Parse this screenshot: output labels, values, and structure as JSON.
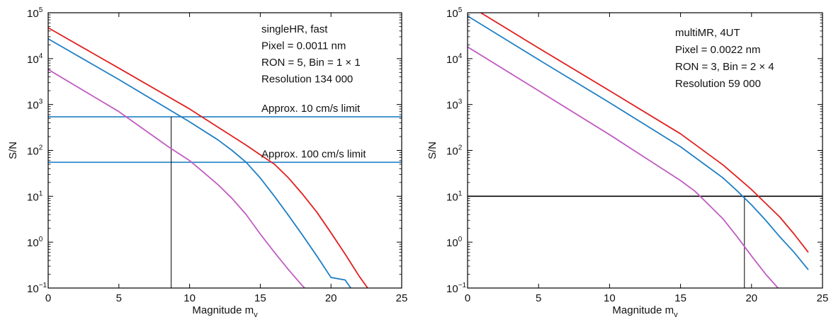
{
  "chart_data": [
    {
      "type": "line",
      "y_scale": "log",
      "xlabel": "Magnitude m",
      "xlabel_sub": "v",
      "ylabel": "S/N",
      "xlim": [
        0,
        25
      ],
      "ylim": [
        0.1,
        100000
      ],
      "xticks": [
        0,
        5,
        10,
        15,
        20,
        25
      ],
      "yticks": [
        {
          "value": 0.1,
          "base": "10",
          "exp": "−1"
        },
        {
          "value": 1,
          "base": "10",
          "exp": "0"
        },
        {
          "value": 10,
          "base": "10",
          "exp": "1"
        },
        {
          "value": 100,
          "base": "10",
          "exp": "2"
        },
        {
          "value": 1000,
          "base": "10",
          "exp": "3"
        },
        {
          "value": 10000,
          "base": "10",
          "exp": "4"
        },
        {
          "value": 100000,
          "base": "10",
          "exp": "5"
        }
      ],
      "info_lines": [
        "singleHR, fast",
        "Pixel = 0.0011 nm",
        "RON = 5, Bin = 1 × 1",
        "Resolution 134 000"
      ],
      "series": [
        {
          "color": "#e0201e",
          "x": [
            0,
            5,
            10,
            14,
            15,
            16,
            17,
            18,
            19,
            20,
            21,
            22,
            22.7
          ],
          "y": [
            47000,
            6200,
            800,
            130,
            80,
            50,
            25,
            11,
            4.5,
            1.6,
            0.55,
            0.18,
            0.09
          ]
        },
        {
          "color": "#1f7fc4",
          "x": [
            0,
            5,
            10,
            12,
            13,
            14,
            15,
            16,
            17,
            18,
            19,
            20,
            21,
            21.5
          ],
          "y": [
            27000,
            3500,
            420,
            170,
            100,
            55,
            25,
            10,
            3.8,
            1.4,
            0.5,
            0.17,
            0.15,
            0.09
          ]
        },
        {
          "color": "#c05cc1",
          "x": [
            0,
            5,
            8.5,
            10,
            11,
            12,
            13,
            14,
            15,
            16,
            17,
            18,
            18.3
          ],
          "y": [
            5800,
            700,
            120,
            60,
            33,
            18,
            9,
            4,
            1.5,
            0.6,
            0.25,
            0.11,
            0.09
          ]
        }
      ],
      "reference_lines": [
        {
          "y": 540,
          "label": "Approx. 10 cm/s limit",
          "color": "#1f7fc4"
        },
        {
          "y": 55,
          "label": "Approx. 100 cm/s limit",
          "color": "#1f7fc4"
        }
      ],
      "marker_x": 8.7,
      "marker_y_top": 540,
      "colors": {
        "red": "#e0201e",
        "blue": "#1f7fc4",
        "magenta": "#c05cc1",
        "axis": "#000000"
      }
    },
    {
      "type": "line",
      "y_scale": "log",
      "xlabel": "Magnitude m",
      "xlabel_sub": "v",
      "ylabel": "S/N",
      "xlim": [
        0,
        25
      ],
      "ylim": [
        0.1,
        100000
      ],
      "xticks": [
        0,
        5,
        10,
        15,
        20,
        25
      ],
      "yticks": [
        {
          "value": 0.1,
          "base": "10",
          "exp": "−1"
        },
        {
          "value": 1,
          "base": "10",
          "exp": "0"
        },
        {
          "value": 10,
          "base": "10",
          "exp": "1"
        },
        {
          "value": 100,
          "base": "10",
          "exp": "2"
        },
        {
          "value": 1000,
          "base": "10",
          "exp": "3"
        },
        {
          "value": 10000,
          "base": "10",
          "exp": "4"
        },
        {
          "value": 100000,
          "base": "10",
          "exp": "5"
        }
      ],
      "info_lines": [
        "multiMR, 4UT",
        "Pixel = 0.0022 nm",
        "RON = 3, Bin = 2 × 4",
        "Resolution 59 000"
      ],
      "series": [
        {
          "color": "#e0201e",
          "x": [
            0,
            5,
            10,
            15,
            18,
            19,
            20,
            21,
            22,
            23,
            24
          ],
          "y": [
            150000,
            17000,
            2000,
            230,
            48,
            26,
            14,
            7,
            3.5,
            1.5,
            0.6
          ]
        },
        {
          "color": "#1f7fc4",
          "x": [
            0,
            5,
            10,
            15,
            18,
            19,
            20,
            21,
            22,
            23,
            24
          ],
          "y": [
            85000,
            9500,
            1100,
            120,
            25,
            13,
            6.5,
            3,
            1.3,
            0.6,
            0.25
          ]
        },
        {
          "color": "#c05cc1",
          "x": [
            0,
            5,
            10,
            15,
            16,
            17,
            18,
            19,
            20,
            21,
            22
          ],
          "y": [
            18000,
            2000,
            220,
            22,
            13,
            6.5,
            3.2,
            1.3,
            0.5,
            0.2,
            0.09
          ]
        }
      ],
      "reference_lines": [
        {
          "y": 10,
          "label": "",
          "color": "#000000"
        }
      ],
      "marker_x": 19.5,
      "marker_y_top": 10,
      "colors": {
        "red": "#e0201e",
        "blue": "#1f7fc4",
        "magenta": "#c05cc1",
        "axis": "#000000"
      }
    }
  ]
}
